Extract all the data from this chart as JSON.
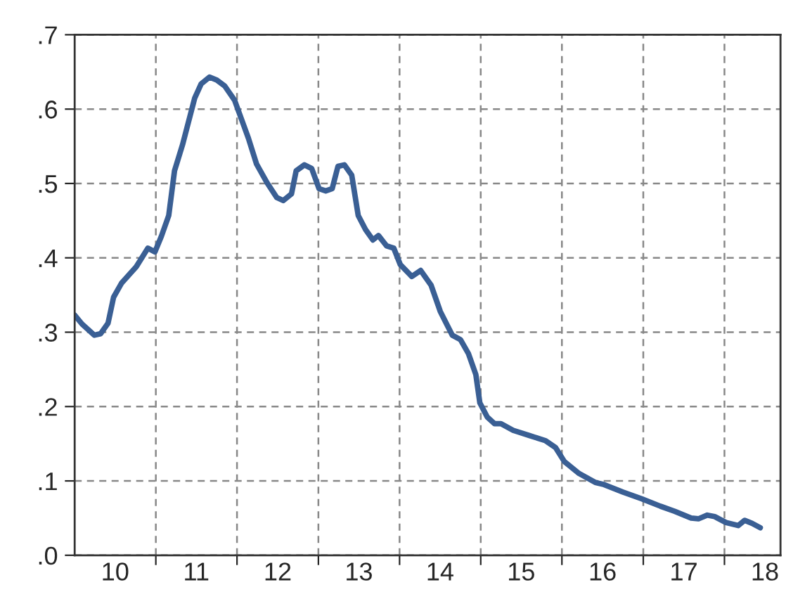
{
  "chart_data": {
    "type": "line",
    "x": [
      "2010-01-01",
      "2010-02-03",
      "2010-03-30",
      "2010-04-28",
      "2010-05-31",
      "2010-06-25",
      "2010-07-31",
      "2010-10-05",
      "2010-11-26",
      "2010-12-28",
      "2011-01-26",
      "2011-02-28",
      "2011-03-26",
      "2011-05-01",
      "2011-06-25",
      "2011-07-24",
      "2011-08-30",
      "2011-10-02",
      "2011-11-07",
      "2011-12-21",
      "2012-02-21",
      "2012-03-29",
      "2012-05-15",
      "2012-06-28",
      "2012-07-27",
      "2012-09-02",
      "2012-09-23",
      "2012-10-30",
      "2012-12-02",
      "2013-01-04",
      "2013-02-03",
      "2013-03-04",
      "2013-03-30",
      "2013-04-28",
      "2013-05-31",
      "2013-06-29",
      "2013-08-01",
      "2013-09-03",
      "2013-09-28",
      "2013-11-04",
      "2013-12-06",
      "2014-01-04",
      "2014-02-25",
      "2014-04-06",
      "2014-05-23",
      "2014-07-03",
      "2014-08-26",
      "2014-10-02",
      "2014-11-07",
      "2014-12-10",
      "2014-12-28",
      "2015-01-30",
      "2015-03-04",
      "2015-04-02",
      "2015-05-27",
      "2015-08-08",
      "2015-10-20",
      "2015-12-03",
      "2016-01-12",
      "2016-03-18",
      "2016-05-30",
      "2016-07-09",
      "2016-10-01",
      "2016-12-24",
      "2017-03-19",
      "2017-05-23",
      "2017-08-04",
      "2017-09-06",
      "2017-10-16",
      "2017-11-18",
      "2018-01-08",
      "2018-03-04",
      "2018-04-02",
      "2018-05-05",
      "2018-06-11"
    ],
    "series": [
      {
        "color": "#3a5f94",
        "values": [
          0.323,
          0.311,
          0.296,
          0.298,
          0.312,
          0.347,
          0.366,
          0.388,
          0.413,
          0.408,
          0.429,
          0.457,
          0.517,
          0.552,
          0.615,
          0.634,
          0.643,
          0.639,
          0.631,
          0.612,
          0.561,
          0.526,
          0.501,
          0.481,
          0.477,
          0.486,
          0.517,
          0.525,
          0.52,
          0.493,
          0.49,
          0.493,
          0.523,
          0.525,
          0.511,
          0.457,
          0.438,
          0.424,
          0.43,
          0.416,
          0.413,
          0.391,
          0.375,
          0.383,
          0.363,
          0.328,
          0.296,
          0.29,
          0.271,
          0.243,
          0.205,
          0.186,
          0.177,
          0.177,
          0.168,
          0.161,
          0.154,
          0.145,
          0.126,
          0.11,
          0.098,
          0.095,
          0.085,
          0.076,
          0.066,
          0.059,
          0.05,
          0.049,
          0.054,
          0.052,
          0.044,
          0.04,
          0.047,
          0.043,
          0.037
        ]
      }
    ],
    "xlim": [
      "2010-01-01",
      "2018-09-10"
    ],
    "xticks": [
      {
        "value": "2011-01-01",
        "label": null
      },
      {
        "value": "2012-01-01",
        "label": null
      },
      {
        "value": "2013-01-01",
        "label": null
      },
      {
        "value": "2014-01-01",
        "label": null
      },
      {
        "value": "2015-01-01",
        "label": null
      },
      {
        "value": "2016-01-01",
        "label": null
      },
      {
        "value": "2017-01-01",
        "label": null
      },
      {
        "value": "2018-01-01",
        "label": null
      },
      {
        "value": "2010-07-02",
        "label": "10"
      },
      {
        "value": "2011-07-02",
        "label": "11"
      },
      {
        "value": "2012-07-02",
        "label": "12"
      },
      {
        "value": "2013-07-02",
        "label": "13"
      },
      {
        "value": "2014-07-02",
        "label": "14"
      },
      {
        "value": "2015-07-02",
        "label": "15"
      },
      {
        "value": "2016-07-02",
        "label": "16"
      },
      {
        "value": "2017-07-02",
        "label": "17"
      },
      {
        "value": "2018-07-02",
        "label": "18"
      }
    ],
    "ylim": [
      0,
      0.7
    ],
    "yticks": [
      {
        "value": 0,
        "label": ".0"
      },
      {
        "value": 0.1,
        "label": ".1"
      },
      {
        "value": 0.2,
        "label": ".2"
      },
      {
        "value": 0.3,
        "label": ".3"
      },
      {
        "value": 0.4,
        "label": ".4"
      },
      {
        "value": 0.5,
        "label": ".5"
      },
      {
        "value": 0.6,
        "label": ".6"
      },
      {
        "value": 0.7,
        "label": ".7"
      }
    ],
    "grid": true,
    "line_style": "solid"
  }
}
